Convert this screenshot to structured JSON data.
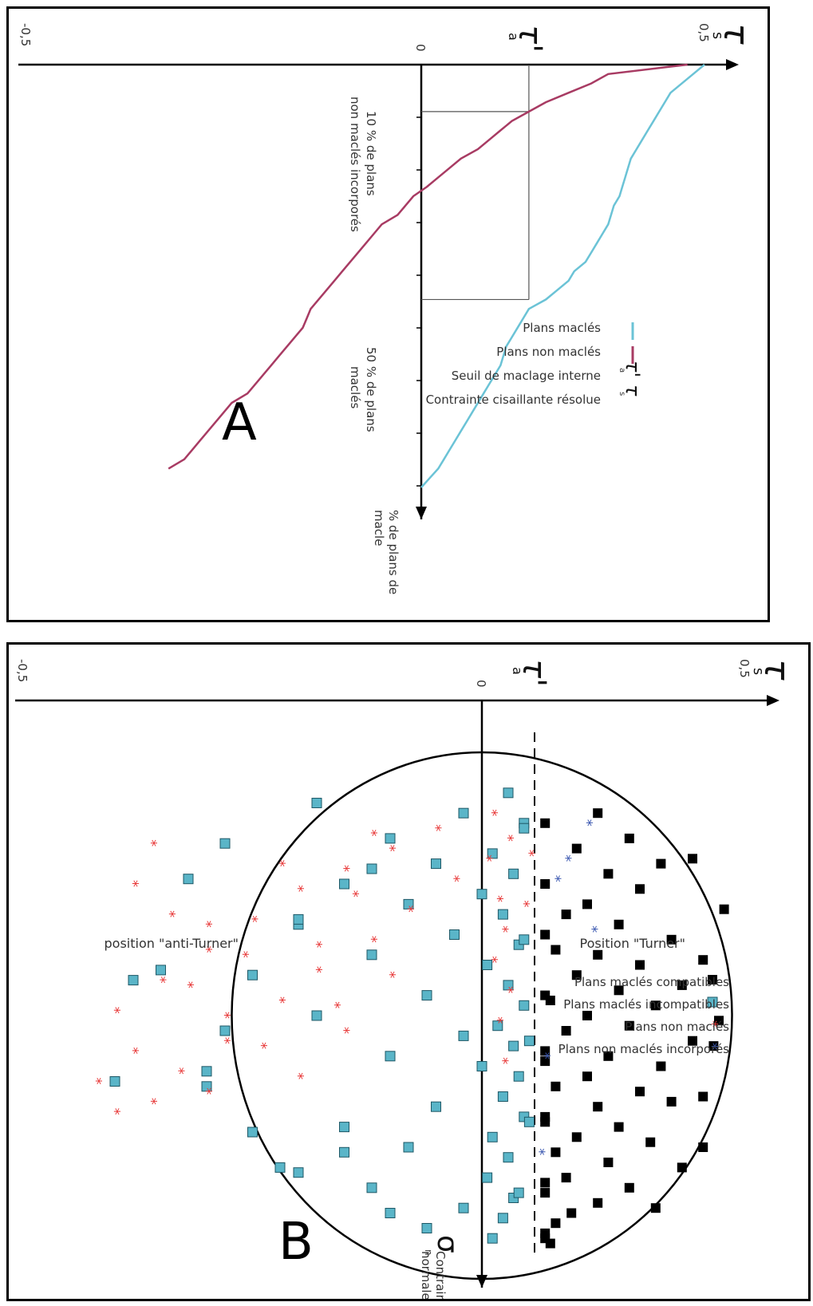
{
  "panel_a": {
    "label": "A",
    "y_axis": {
      "symbol": "τ",
      "subscript": "s",
      "tick_top": "0,5",
      "tick_zero": "0",
      "tick_bottom": "-0,5"
    },
    "threshold": {
      "symbol": "τ'",
      "subscript": "a"
    },
    "x_axis_label": [
      "% de plans de",
      "macle"
    ],
    "annot_10": [
      "10 % de plans",
      "non maclés incorporés"
    ],
    "annot_50": [
      "50 % de plans",
      "maclés"
    ],
    "legend": [
      {
        "kind": "line",
        "color": "#6bc3d6",
        "label": "Plans maclés"
      },
      {
        "kind": "line",
        "color": "#a83b63",
        "label": "Plans non maclés"
      },
      {
        "kind": "symbol",
        "symbol": "τ'",
        "subscript": "a",
        "label": "Seuil de maclage interne"
      },
      {
        "kind": "symbol",
        "symbol": "τ",
        "subscript": "s",
        "label": "Contrainte cisaillante résolue"
      }
    ]
  },
  "panel_b": {
    "label": "B",
    "y_axis": {
      "symbol": "τ",
      "subscript": "s",
      "tick_top": "0,5",
      "tick_zero": "0",
      "tick_bottom": "-0,5"
    },
    "threshold": {
      "symbol": "τ'",
      "subscript": "a"
    },
    "x_axis_label": [
      "Contrainte",
      "normale"
    ],
    "x_symbol": "σ",
    "x_subscript": "n",
    "turner_label": "Position \"Turner\"",
    "anti_turner_label": "position \"anti-Turner\"",
    "legend": [
      {
        "marker": "square",
        "color": "#000000",
        "label": "Plans maclés compatibles"
      },
      {
        "marker": "square",
        "color": "#5ab5c8",
        "label": "Plans maclés incompatibles"
      },
      {
        "marker": "star",
        "color": "#e83a3a",
        "label": "Plans non maclés"
      },
      {
        "marker": "star",
        "color": "#3a57b0",
        "label": "Plans non maclés incorporés"
      }
    ]
  },
  "chart_data": [
    {
      "type": "line",
      "title": "",
      "xlabel": "% de plans de macle",
      "ylabel": "τs",
      "ylim": [
        -0.5,
        0.5
      ],
      "threshold_tau_a": 0.19,
      "series": [
        {
          "name": "Plans maclés",
          "color": "#6bc3d6",
          "x": [
            0,
            2,
            4,
            6,
            8,
            10,
            12,
            14,
            16,
            18,
            20,
            22,
            24,
            26,
            28,
            30,
            32,
            34,
            36,
            38,
            40,
            42,
            44,
            46,
            48,
            50,
            52,
            54,
            56,
            58,
            60,
            62,
            64,
            66,
            68,
            70,
            72,
            74,
            76,
            78,
            80,
            82,
            84,
            86,
            88,
            90
          ],
          "y": [
            0.5,
            0.48,
            0.46,
            0.44,
            0.43,
            0.42,
            0.41,
            0.4,
            0.39,
            0.38,
            0.37,
            0.365,
            0.36,
            0.355,
            0.35,
            0.34,
            0.335,
            0.33,
            0.32,
            0.31,
            0.3,
            0.29,
            0.27,
            0.26,
            0.24,
            0.22,
            0.19,
            0.18,
            0.17,
            0.16,
            0.15,
            0.145,
            0.14,
            0.13,
            0.12,
            0.11,
            0.1,
            0.09,
            0.08,
            0.07,
            0.06,
            0.05,
            0.04,
            0.03,
            0.015,
            0.0
          ]
        },
        {
          "name": "Plans non maclés",
          "color": "#a83b63",
          "x": [
            0,
            2,
            4,
            6,
            8,
            10,
            12,
            14,
            16,
            18,
            20,
            22,
            24,
            26,
            28,
            30,
            32,
            34,
            36,
            38,
            40,
            42,
            44,
            46,
            48,
            50,
            52,
            54,
            56,
            58,
            60,
            62,
            64,
            66,
            68,
            70,
            72,
            74,
            76,
            78,
            80,
            82,
            84,
            86
          ],
          "y": [
            0.47,
            0.33,
            0.3,
            0.26,
            0.22,
            0.19,
            0.16,
            0.14,
            0.12,
            0.1,
            0.07,
            0.05,
            0.03,
            0.01,
            -0.01,
            -0.02,
            -0.03,
            -0.05,
            -0.06,
            -0.07,
            -0.08,
            -0.09,
            -0.1,
            -0.11,
            -0.12,
            -0.13,
            -0.14,
            -0.145,
            -0.15,
            -0.16,
            -0.17,
            -0.18,
            -0.19,
            -0.2,
            -0.21,
            -0.22,
            -0.24,
            -0.25,
            -0.26,
            -0.27,
            -0.28,
            -0.29,
            -0.3,
            -0.32
          ]
        }
      ]
    },
    {
      "type": "scatter",
      "title": "",
      "xlabel": "Contrainte normale σn",
      "ylabel": "τs",
      "ylim": [
        -0.5,
        0.5
      ],
      "xlim": [
        -0.52,
        0.52
      ],
      "threshold_tau_a": 0.1,
      "series": [
        {
          "name": "Plans maclés compatibles",
          "marker": "square",
          "color": "#000000",
          "x": [
            -0.4,
            -0.35,
            -0.33,
            -0.3,
            -0.28,
            -0.25,
            -0.22,
            -0.2,
            -0.18,
            -0.15,
            -0.13,
            -0.12,
            -0.1,
            -0.08,
            -0.06,
            -0.05,
            -0.03,
            -0.02,
            0.0,
            0.02,
            0.03,
            0.05,
            0.07,
            0.08,
            0.1,
            0.12,
            0.14,
            0.15,
            0.17,
            0.18,
            0.2,
            0.22,
            0.24,
            0.25,
            0.27,
            0.29,
            0.3,
            0.32,
            0.34,
            0.35,
            0.37,
            0.39,
            0.41,
            0.43,
            0.45,
            -0.38,
            -0.26,
            -0.16,
            -0.04,
            0.09,
            0.21,
            0.33,
            0.44,
            -0.31,
            -0.11,
            0.06,
            0.26,
            0.38,
            -0.21,
            0.01,
            0.16
          ],
          "y": [
            0.22,
            0.28,
            0.18,
            0.34,
            0.24,
            0.3,
            0.2,
            0.16,
            0.26,
            0.36,
            0.14,
            0.22,
            0.3,
            0.18,
            0.38,
            0.26,
            0.13,
            0.33,
            0.2,
            0.28,
            0.16,
            0.4,
            0.12,
            0.24,
            0.34,
            0.2,
            0.14,
            0.3,
            0.36,
            0.22,
            0.12,
            0.26,
            0.18,
            0.32,
            0.14,
            0.24,
            0.38,
            0.16,
            0.28,
            0.12,
            0.22,
            0.17,
            0.14,
            0.12,
            0.13,
            0.12,
            0.12,
            0.12,
            0.12,
            0.12,
            0.12,
            0.12,
            0.12,
            0.4,
            0.42,
            0.44,
            0.42,
            0.33,
            0.46,
            0.45,
            0.42
          ]
        },
        {
          "name": "Plans maclés incompatibles",
          "marker": "square",
          "color": "#5ab5c8",
          "x": [
            -0.44,
            -0.4,
            -0.38,
            -0.35,
            -0.32,
            -0.3,
            -0.28,
            -0.26,
            -0.24,
            -0.22,
            -0.2,
            -0.18,
            -0.16,
            -0.14,
            -0.12,
            -0.1,
            -0.08,
            -0.06,
            -0.04,
            -0.02,
            0.0,
            0.02,
            0.04,
            0.06,
            0.08,
            0.1,
            0.12,
            0.14,
            0.16,
            0.18,
            0.2,
            0.22,
            0.24,
            0.26,
            0.28,
            0.3,
            0.32,
            0.34,
            0.36,
            0.38,
            0.4,
            0.42,
            0.44,
            -0.42,
            -0.34,
            -0.27,
            -0.19,
            -0.09,
            0.03,
            0.13,
            0.23,
            0.31,
            0.39,
            -0.37,
            -0.15,
            0.05,
            0.21,
            0.35,
            -0.29,
            -0.07,
            0.11,
            0.27
          ],
          "y": [
            0.05,
            -0.02,
            0.08,
            -0.1,
            0.02,
            -0.05,
            0.06,
            -0.15,
            0.0,
            -0.08,
            0.04,
            -0.2,
            -0.03,
            0.07,
            -0.12,
            0.01,
            -0.25,
            0.05,
            -0.06,
            0.08,
            -0.18,
            0.03,
            -0.02,
            0.06,
            -0.1,
            0.0,
            0.07,
            -0.3,
            0.04,
            -0.05,
            0.08,
            -0.15,
            0.02,
            -0.08,
            0.05,
            -0.22,
            0.01,
            -0.12,
            0.06,
            -0.02,
            0.04,
            -0.06,
            0.02,
            -0.18,
            -0.28,
            -0.32,
            -0.2,
            -0.35,
            -0.28,
            -0.4,
            -0.25,
            -0.2,
            -0.1,
            0.08,
            0.08,
            0.09,
            0.09,
            0.07,
            -0.12,
            -0.38,
            -0.3,
            -0.15
          ]
        },
        {
          "name": "Plans non maclés",
          "marker": "star",
          "color": "#e83a3a",
          "x": [
            -0.4,
            -0.37,
            -0.35,
            -0.33,
            -0.31,
            -0.29,
            -0.27,
            -0.25,
            -0.23,
            -0.21,
            -0.19,
            -0.17,
            -0.15,
            -0.13,
            -0.11,
            -0.09,
            -0.07,
            -0.05,
            -0.03,
            -0.01,
            0.01,
            0.03,
            0.05,
            0.07,
            0.09,
            0.11,
            0.13,
            0.15,
            0.17,
            0.19,
            -0.36,
            -0.3,
            -0.24,
            -0.18,
            -0.12,
            -0.06,
            0.0,
            0.06,
            0.12,
            -0.34,
            -0.26,
            -0.2,
            -0.14,
            -0.08,
            -0.02,
            -0.32,
            -0.22
          ],
          "y": [
            0.02,
            -0.05,
            0.05,
            -0.1,
            0.01,
            -0.15,
            -0.03,
            -0.2,
            0.03,
            -0.08,
            -0.25,
            0.04,
            -0.12,
            -0.3,
            0.02,
            -0.18,
            -0.35,
            0.05,
            -0.22,
            -0.4,
            0.03,
            -0.15,
            -0.28,
            -0.38,
            0.04,
            -0.33,
            -0.42,
            -0.3,
            -0.36,
            -0.4,
            -0.12,
            -0.22,
            -0.14,
            -0.3,
            -0.26,
            -0.32,
            -0.28,
            -0.24,
            -0.2,
            -0.36,
            -0.38,
            -0.34,
            -0.18,
            -0.1,
            -0.16,
            0.09,
            0.08
          ]
        },
        {
          "name": "Plans non maclés incorporés",
          "marker": "star",
          "color": "#3a57b0",
          "x": [
            -0.38,
            -0.31,
            -0.27,
            -0.17,
            0.08,
            0.27
          ],
          "y": [
            0.2,
            0.16,
            0.14,
            0.21,
            0.12,
            0.11
          ]
        }
      ]
    }
  ]
}
